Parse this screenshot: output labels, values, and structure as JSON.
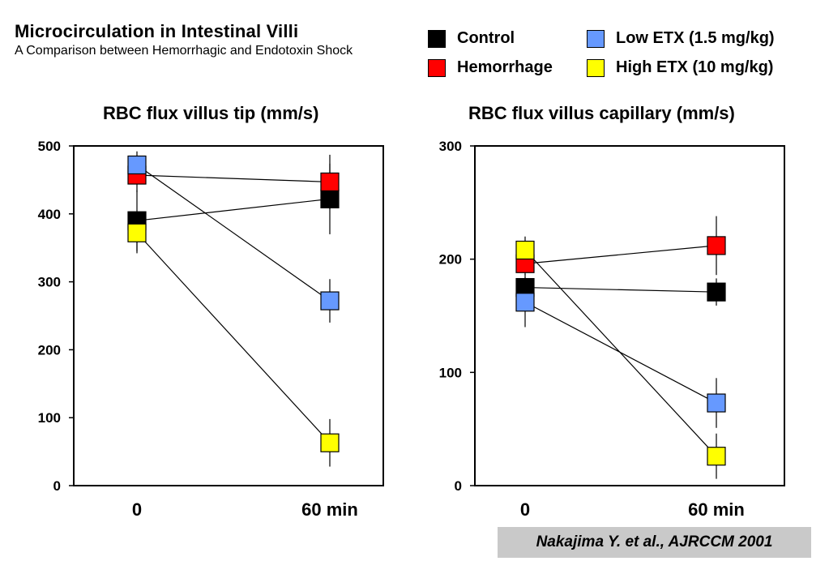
{
  "header": {
    "title": "Microcirculation in Intestinal Villi",
    "subtitle": "A Comparison between Hemorrhagic and Endotoxin Shock"
  },
  "legend": [
    {
      "label": "Control",
      "color": "#000000"
    },
    {
      "label": "Hemorrhage",
      "color": "#ff0000"
    },
    {
      "label": "Low ETX (1.5 mg/kg)",
      "color": "#6699ff"
    },
    {
      "label": "High ETX (10 mg/kg)",
      "color": "#ffff00"
    }
  ],
  "citation": "Nakajima Y. et al., AJRCCM 2001",
  "chart_data": [
    {
      "type": "line",
      "title": "RBC flux villus tip (mm/s)",
      "categories": [
        "0",
        "60 min"
      ],
      "ylim": [
        0,
        500
      ],
      "yticks": [
        0,
        100,
        200,
        300,
        400,
        500
      ],
      "series": [
        {
          "name": "Control",
          "color": "#000000",
          "values": [
            390,
            422
          ],
          "error": [
            45,
            52
          ]
        },
        {
          "name": "Hemorrhage",
          "color": "#ff0000",
          "values": [
            457,
            447
          ],
          "error": [
            25,
            40
          ]
        },
        {
          "name": "Low ETX (1.5 mg/kg)",
          "color": "#6699ff",
          "values": [
            472,
            272
          ],
          "error": [
            20,
            32
          ]
        },
        {
          "name": "High ETX (10 mg/kg)",
          "color": "#ffff00",
          "values": [
            372,
            63
          ],
          "error": [
            30,
            35
          ]
        }
      ]
    },
    {
      "type": "line",
      "title": "RBC flux villus capillary (mm/s)",
      "categories": [
        "0",
        "60 min"
      ],
      "ylim": [
        0,
        300
      ],
      "yticks": [
        0,
        100,
        200,
        300
      ],
      "series": [
        {
          "name": "Control",
          "color": "#000000",
          "values": [
            175,
            171
          ],
          "error": [
            12,
            12
          ]
        },
        {
          "name": "Hemorrhage",
          "color": "#ff0000",
          "values": [
            196,
            212
          ],
          "error": [
            10,
            26
          ]
        },
        {
          "name": "Low ETX (1.5 mg/kg)",
          "color": "#6699ff",
          "values": [
            162,
            73
          ],
          "error": [
            22,
            22
          ]
        },
        {
          "name": "High ETX (10 mg/kg)",
          "color": "#ffff00",
          "values": [
            208,
            26
          ],
          "error": [
            12,
            20
          ]
        }
      ]
    }
  ]
}
